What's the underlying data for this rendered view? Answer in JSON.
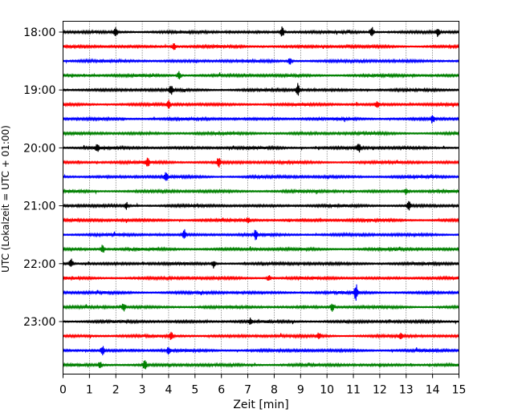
{
  "chart_data": {
    "type": "line",
    "subtype": "seismogram-helicorder",
    "xlabel": "Zeit  [min]",
    "ylabel": "UTC (Lokalzeit = UTC + 01:00)",
    "xlim": [
      0,
      15
    ],
    "x_ticks": [
      0,
      1,
      2,
      3,
      4,
      5,
      6,
      7,
      8,
      9,
      10,
      11,
      12,
      13,
      14,
      15
    ],
    "x_tick_labels": [
      "0",
      "1",
      "2",
      "3",
      "4",
      "5",
      "6",
      "7",
      "8",
      "9",
      "10",
      "11",
      "12",
      "13",
      "14",
      "15"
    ],
    "x_grid": "vertical dotted",
    "trace_interval_min": 15,
    "trace_start_times": [
      "18:00",
      "18:15",
      "18:30",
      "18:45",
      "19:00",
      "19:15",
      "19:30",
      "19:45",
      "20:00",
      "20:15",
      "20:30",
      "20:45",
      "21:00",
      "21:15",
      "21:30",
      "21:45",
      "22:00",
      "22:15",
      "22:30",
      "22:45",
      "23:00",
      "23:15",
      "23:30",
      "23:45"
    ],
    "y_tick_labels": [
      "18:00",
      "19:00",
      "20:00",
      "21:00",
      "22:00",
      "23:00"
    ],
    "color_cycle": [
      "#000000",
      "#ff0000",
      "#0000ff",
      "#008000"
    ],
    "events": [
      {
        "trace": 0,
        "x": 2.0,
        "amp": 1.2
      },
      {
        "trace": 0,
        "x": 8.3,
        "amp": 1.4
      },
      {
        "trace": 0,
        "x": 11.7,
        "amp": 1.2
      },
      {
        "trace": 0,
        "x": 14.2,
        "amp": 1.0
      },
      {
        "trace": 1,
        "x": 4.2,
        "amp": 0.9
      },
      {
        "trace": 2,
        "x": 8.6,
        "amp": 0.9
      },
      {
        "trace": 3,
        "x": 4.4,
        "amp": 1.1
      },
      {
        "trace": 4,
        "x": 8.9,
        "amp": 1.5
      },
      {
        "trace": 4,
        "x": 4.1,
        "amp": 1.0
      },
      {
        "trace": 5,
        "x": 4.0,
        "amp": 0.9
      },
      {
        "trace": 5,
        "x": 11.9,
        "amp": 0.8
      },
      {
        "trace": 6,
        "x": 14.0,
        "amp": 1.0
      },
      {
        "trace": 8,
        "x": 1.3,
        "amp": 0.9
      },
      {
        "trace": 8,
        "x": 11.2,
        "amp": 1.0
      },
      {
        "trace": 9,
        "x": 3.2,
        "amp": 1.0
      },
      {
        "trace": 9,
        "x": 5.9,
        "amp": 1.3
      },
      {
        "trace": 10,
        "x": 3.9,
        "amp": 1.0
      },
      {
        "trace": 11,
        "x": 13.0,
        "amp": 0.8
      },
      {
        "trace": 12,
        "x": 2.4,
        "amp": 0.8
      },
      {
        "trace": 12,
        "x": 13.1,
        "amp": 1.1
      },
      {
        "trace": 13,
        "x": 7.0,
        "amp": 0.8
      },
      {
        "trace": 14,
        "x": 4.6,
        "amp": 1.1
      },
      {
        "trace": 14,
        "x": 7.3,
        "amp": 1.1
      },
      {
        "trace": 15,
        "x": 1.5,
        "amp": 1.0
      },
      {
        "trace": 16,
        "x": 0.3,
        "amp": 1.1
      },
      {
        "trace": 16,
        "x": 5.7,
        "amp": 0.8
      },
      {
        "trace": 17,
        "x": 7.8,
        "amp": 0.9
      },
      {
        "trace": 18,
        "x": 11.1,
        "amp": 2.0
      },
      {
        "trace": 19,
        "x": 2.3,
        "amp": 1.0
      },
      {
        "trace": 19,
        "x": 10.2,
        "amp": 1.0
      },
      {
        "trace": 20,
        "x": 7.1,
        "amp": 0.8
      },
      {
        "trace": 21,
        "x": 4.1,
        "amp": 0.8
      },
      {
        "trace": 21,
        "x": 9.7,
        "amp": 0.8
      },
      {
        "trace": 21,
        "x": 12.8,
        "amp": 0.9
      },
      {
        "trace": 22,
        "x": 1.5,
        "amp": 1.0
      },
      {
        "trace": 22,
        "x": 4.0,
        "amp": 0.8
      },
      {
        "trace": 23,
        "x": 3.1,
        "amp": 1.1
      },
      {
        "trace": 23,
        "x": 1.4,
        "amp": 0.8
      }
    ]
  }
}
